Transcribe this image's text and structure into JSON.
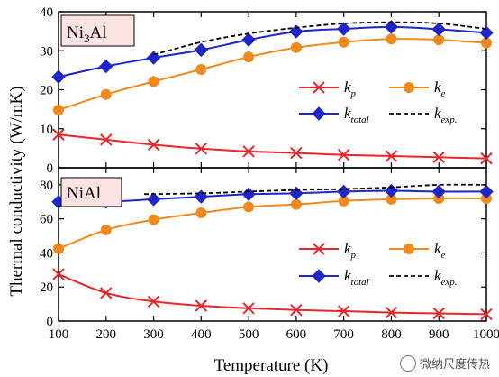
{
  "colors": {
    "kp": "#e8262b",
    "ke": "#f0891e",
    "total": "#1f25c9",
    "exp": "#000000",
    "label_box": "#fde2e2"
  },
  "axis": {
    "xlabel": "Temperature (K)",
    "ylabel": "Thermal conductivity (W/mK)"
  },
  "chart_data": [
    {
      "type": "line",
      "panel": "top",
      "label_prefix": "Ni",
      "label_sub": "3",
      "label_suffix": "Al",
      "x": [
        100,
        200,
        300,
        400,
        500,
        600,
        700,
        800,
        900,
        1000
      ],
      "xlim": [
        100,
        1000
      ],
      "ylim": [
        0,
        40
      ],
      "yticks": [
        0,
        10,
        20,
        30,
        40
      ],
      "series": [
        {
          "key": "kp",
          "symbol": "k",
          "sub": "p",
          "marker": "x",
          "values": [
            8.5,
            7.2,
            5.9,
            4.9,
            4.2,
            3.8,
            3.3,
            3.0,
            2.7,
            2.4
          ]
        },
        {
          "key": "ke",
          "symbol": "k",
          "sub": "e",
          "marker": "circle",
          "values": [
            14.8,
            18.8,
            22.1,
            25.2,
            28.4,
            30.8,
            32.2,
            33.0,
            32.8,
            32.0
          ]
        },
        {
          "key": "total",
          "symbol": "k",
          "sub": "total",
          "marker": "diamond",
          "values": [
            23.3,
            26.0,
            28.2,
            30.2,
            32.8,
            34.9,
            35.6,
            36.1,
            35.5,
            34.6
          ]
        },
        {
          "key": "exp",
          "symbol": "k",
          "sub": "exp.",
          "marker": "none",
          "x": [
            300,
            400,
            500,
            600,
            700,
            800,
            900,
            1000
          ],
          "values": [
            29.0,
            32.2,
            34.4,
            35.9,
            37.0,
            37.3,
            37.0,
            35.6
          ]
        }
      ]
    },
    {
      "type": "line",
      "panel": "bottom",
      "label_prefix": "NiAl",
      "label_sub": "",
      "label_suffix": "",
      "x": [
        100,
        200,
        300,
        400,
        500,
        600,
        700,
        800,
        900,
        1000
      ],
      "xlim": [
        100,
        1000
      ],
      "xticks": [
        100,
        200,
        300,
        400,
        500,
        600,
        700,
        800,
        900,
        1000
      ],
      "ylim": [
        0,
        90
      ],
      "yticks": [
        0,
        20,
        40,
        60,
        80
      ],
      "series": [
        {
          "key": "kp",
          "symbol": "k",
          "sub": "p",
          "marker": "x",
          "values": [
            27.5,
            16.5,
            11.5,
            9.0,
            7.5,
            6.5,
            5.8,
            5.0,
            4.5,
            4.0
          ]
        },
        {
          "key": "ke",
          "symbol": "k",
          "sub": "e",
          "marker": "circle",
          "values": [
            42.5,
            53.5,
            59.5,
            63.5,
            67.0,
            68.5,
            70.5,
            71.5,
            72.0,
            72.0
          ]
        },
        {
          "key": "total",
          "symbol": "k",
          "sub": "total",
          "marker": "diamond",
          "values": [
            70.0,
            70.0,
            71.5,
            73.0,
            74.5,
            75.0,
            76.0,
            76.5,
            76.0,
            76.0
          ]
        },
        {
          "key": "exp",
          "symbol": "k",
          "sub": "exp.",
          "marker": "none",
          "x": [
            280,
            400,
            500,
            600,
            700,
            800,
            900,
            1000
          ],
          "values": [
            74.5,
            75.0,
            76.0,
            77.0,
            77.5,
            78.5,
            80.0,
            80.0
          ]
        }
      ]
    }
  ],
  "watermark": {
    "text": "微纳尺度传热"
  }
}
